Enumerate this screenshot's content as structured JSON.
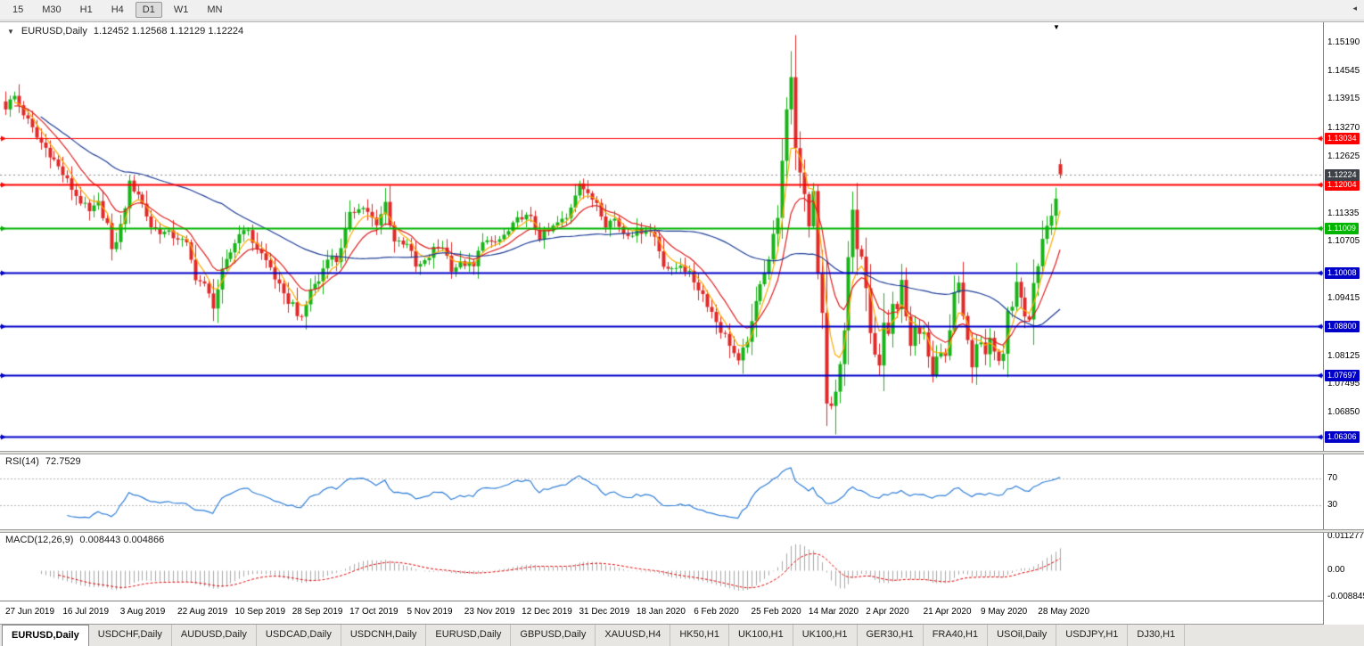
{
  "toolbar": {
    "timeframes": [
      "15",
      "M30",
      "H1",
      "H4",
      "D1",
      "W1",
      "MN"
    ],
    "active_timeframe": "D1",
    "overflow_icon": "◂"
  },
  "chart": {
    "symbol_label": "EURUSD,Daily",
    "quote": "1.12452 1.12568 1.12129 1.12224",
    "collapse_icon": "▼",
    "shift_marker_icon": "▼"
  },
  "rsi": {
    "label": "RSI(14)",
    "value": "72.7529",
    "levels": [
      70,
      30
    ],
    "level_labels": [
      "70",
      "30"
    ]
  },
  "macd": {
    "label": "MACD(12,26,9)",
    "values": "0.008443 0.004866",
    "axis_labels": [
      {
        "text": "0.011277",
        "value": 0.011277
      },
      {
        "text": "0.00",
        "value": 0
      },
      {
        "text": "-0.008845",
        "value": -0.008845
      }
    ]
  },
  "tabs": [
    {
      "label": "EURUSD,Daily",
      "active": true
    },
    {
      "label": "USDCHF,Daily",
      "active": false
    },
    {
      "label": "AUDUSD,Daily",
      "active": false
    },
    {
      "label": "USDCAD,Daily",
      "active": false
    },
    {
      "label": "USDCNH,Daily",
      "active": false
    },
    {
      "label": "EURUSD,Daily",
      "active": false
    },
    {
      "label": "GBPUSD,Daily",
      "active": false
    },
    {
      "label": "XAUUSD,H4",
      "active": false
    },
    {
      "label": "HK50,H1",
      "active": false
    },
    {
      "label": "UK100,H1",
      "active": false
    },
    {
      "label": "UK100,H1",
      "active": false
    },
    {
      "label": "GER30,H1",
      "active": false
    },
    {
      "label": "FRA40,H1",
      "active": false
    },
    {
      "label": "USOil,Daily",
      "active": false
    },
    {
      "label": "USDJPY,H1",
      "active": false
    },
    {
      "label": "DJ30,H1",
      "active": false
    }
  ],
  "chart_data": {
    "type": "candlestick",
    "symbol": "EURUSD",
    "period": "Daily",
    "current_ohlc": {
      "open": 1.12452,
      "high": 1.12568,
      "low": 1.12129,
      "close": 1.12224
    },
    "bar_count": 240,
    "bars_per_label": 13,
    "x_labels": [
      "27 Jun 2019",
      "16 Jul 2019",
      "3 Aug 2019",
      "22 Aug 2019",
      "10 Sep 2019",
      "28 Sep 2019",
      "17 Oct 2019",
      "5 Nov 2019",
      "23 Nov 2019",
      "12 Dec 2019",
      "31 Dec 2019",
      "18 Jan 2020",
      "6 Feb 2020",
      "25 Feb 2020",
      "14 Mar 2020",
      "2 Apr 2020",
      "21 Apr 2020",
      "9 May 2020",
      "28 May 2020"
    ],
    "y_axis": {
      "min": 1.0605,
      "max": 1.1545,
      "tick_labels": [
        "1.15190",
        "1.14545",
        "1.13915",
        "1.13270",
        "1.12625",
        "1.11335",
        "1.10705",
        "1.09415",
        "1.08125",
        "1.07495",
        "1.06850"
      ]
    },
    "levels": [
      {
        "price": 1.13034,
        "label": "1.13034",
        "color": "#FF0000",
        "width": 1
      },
      {
        "price": 1.12004,
        "label": "1.12004",
        "color": "#FF0000",
        "width": 2
      },
      {
        "price": 1.11009,
        "label": "1.11009",
        "color": "#00B400",
        "width": 2
      },
      {
        "price": 1.10008,
        "label": "1.10008",
        "color": "#0000C8",
        "width": 2
      },
      {
        "price": 1.088,
        "label": "1.08800",
        "color": "#0000C8",
        "width": 2
      },
      {
        "price": 1.07697,
        "label": "1.07697",
        "color": "#0000C8",
        "width": 2
      },
      {
        "price": 1.06306,
        "label": "1.06306",
        "color": "#0000C8",
        "width": 2
      }
    ],
    "current_price": {
      "value": 1.12224,
      "label": "1.12224",
      "color": "#3E4248"
    },
    "colors": {
      "up": "#18B418",
      "down": "#E02A2A",
      "ma_fast": "#FFAA00",
      "ma_mid": "#E02020",
      "ma_slow": "#1F3E96",
      "rsi": "#2F7ED8",
      "macd_hist": "#A9A9A9",
      "macd_signal": "#E00000"
    },
    "ma_periods": {
      "fast": 5,
      "mid": 12,
      "slow": 50
    },
    "rsi_period": 14,
    "macd_params": {
      "fast": 12,
      "slow": 26,
      "signal": 9
    },
    "anchors": [
      [
        0,
        1.1375
      ],
      [
        2,
        1.1398
      ],
      [
        4,
        1.136
      ],
      [
        7,
        1.1305
      ],
      [
        10,
        1.127
      ],
      [
        13,
        1.1222
      ],
      [
        16,
        1.1175
      ],
      [
        19,
        1.1135
      ],
      [
        21,
        1.1155
      ],
      [
        23,
        1.111
      ],
      [
        24,
        1.1045
      ],
      [
        26,
        1.1105
      ],
      [
        28,
        1.12
      ],
      [
        30,
        1.118
      ],
      [
        33,
        1.1105
      ],
      [
        36,
        1.109
      ],
      [
        39,
        1.108
      ],
      [
        41,
        1.1062
      ],
      [
        43,
        1.0992
      ],
      [
        45,
        1.097
      ],
      [
        47,
        1.0928
      ],
      [
        49,
        1.1
      ],
      [
        52,
        1.107
      ],
      [
        54,
        1.1105
      ],
      [
        56,
        1.1072
      ],
      [
        58,
        1.1042
      ],
      [
        60,
        1.1012
      ],
      [
        63,
        1.0945
      ],
      [
        65,
        1.093
      ],
      [
        67,
        1.0892
      ],
      [
        69,
        1.0965
      ],
      [
        71,
        1.0982
      ],
      [
        73,
        1.104
      ],
      [
        75,
        1.1028
      ],
      [
        78,
        1.1128
      ],
      [
        80,
        1.1152
      ],
      [
        82,
        1.114
      ],
      [
        84,
        1.1102
      ],
      [
        86,
        1.1158
      ],
      [
        88,
        1.1072
      ],
      [
        91,
        1.107
      ],
      [
        93,
        1.1012
      ],
      [
        95,
        1.1022
      ],
      [
        97,
        1.1052
      ],
      [
        99,
        1.1062
      ],
      [
        101,
        1.1012
      ],
      [
        104,
        1.1022
      ],
      [
        106,
        1.1012
      ],
      [
        108,
        1.1078
      ],
      [
        110,
        1.1062
      ],
      [
        112,
        1.1075
      ],
      [
        114,
        1.1092
      ],
      [
        117,
        1.113
      ],
      [
        119,
        1.112
      ],
      [
        121,
        1.1082
      ],
      [
        123,
        1.1092
      ],
      [
        125,
        1.1112
      ],
      [
        127,
        1.1122
      ],
      [
        130,
        1.121
      ],
      [
        132,
        1.1172
      ],
      [
        134,
        1.1162
      ],
      [
        136,
        1.1112
      ],
      [
        138,
        1.1122
      ],
      [
        140,
        1.1092
      ],
      [
        143,
        1.1092
      ],
      [
        145,
        1.1102
      ],
      [
        147,
        1.1082
      ],
      [
        149,
        1.1022
      ],
      [
        151,
        1.1002
      ],
      [
        153,
        1.1022
      ],
      [
        156,
        1.0982
      ],
      [
        158,
        1.0952
      ],
      [
        160,
        1.0912
      ],
      [
        162,
        1.0872
      ],
      [
        164,
        1.0842
      ],
      [
        166,
        1.0795
      ],
      [
        168,
        1.0852
      ],
      [
        169,
        1.0882
      ],
      [
        171,
        1.0982
      ],
      [
        173,
        1.1032
      ],
      [
        175,
        1.1132
      ],
      [
        177,
        1.136
      ],
      [
        178,
        1.1445
      ],
      [
        179,
        1.1282
      ],
      [
        181,
        1.1182
      ],
      [
        182,
        1.111
      ],
      [
        183,
        1.118
      ],
      [
        184,
        1.0995
      ],
      [
        185,
        1.0915
      ],
      [
        186,
        1.07
      ],
      [
        187,
        1.07
      ],
      [
        188,
        1.073
      ],
      [
        189,
        1.079
      ],
      [
        190,
        1.088
      ],
      [
        191,
        1.103
      ],
      [
        192,
        1.114
      ],
      [
        193,
        1.1045
      ],
      [
        194,
        1.103
      ],
      [
        195,
        1.096
      ],
      [
        196,
        1.086
      ],
      [
        197,
        1.081
      ],
      [
        198,
        1.079
      ],
      [
        199,
        1.089
      ],
      [
        200,
        1.086
      ],
      [
        201,
        1.093
      ],
      [
        202,
        1.091
      ],
      [
        203,
        1.098
      ],
      [
        204,
        1.091
      ],
      [
        205,
        1.084
      ],
      [
        206,
        1.087
      ],
      [
        207,
        1.086
      ],
      [
        208,
        1.0858
      ],
      [
        209,
        1.082
      ],
      [
        210,
        1.0775
      ],
      [
        211,
        1.082
      ],
      [
        212,
        1.083
      ],
      [
        213,
        1.0818
      ],
      [
        214,
        1.087
      ],
      [
        215,
        1.0955
      ],
      [
        216,
        1.098
      ],
      [
        217,
        1.0905
      ],
      [
        218,
        1.084
      ],
      [
        219,
        1.0795
      ],
      [
        220,
        1.0833
      ],
      [
        221,
        1.0838
      ],
      [
        222,
        1.0807
      ],
      [
        223,
        1.0848
      ],
      [
        224,
        1.0816
      ],
      [
        225,
        1.08
      ],
      [
        226,
        1.082
      ],
      [
        227,
        1.0915
      ],
      [
        228,
        1.0924
      ],
      [
        229,
        1.0975
      ],
      [
        230,
        1.095
      ],
      [
        231,
        1.09
      ],
      [
        232,
        1.0897
      ],
      [
        233,
        1.0983
      ],
      [
        234,
        1.1009
      ],
      [
        235,
        1.1076
      ],
      [
        236,
        1.1101
      ],
      [
        237,
        1.1134
      ],
      [
        238,
        1.1172
      ],
      [
        239,
        1.1222
      ]
    ],
    "overrides": {
      "178": {
        "h": 1.15
      },
      "186": {
        "l": 1.0655
      },
      "188": {
        "l": 1.0636
      },
      "239": {
        "o": 1.12452,
        "h": 1.12568,
        "l": 1.12129,
        "c": 1.12224
      }
    }
  }
}
